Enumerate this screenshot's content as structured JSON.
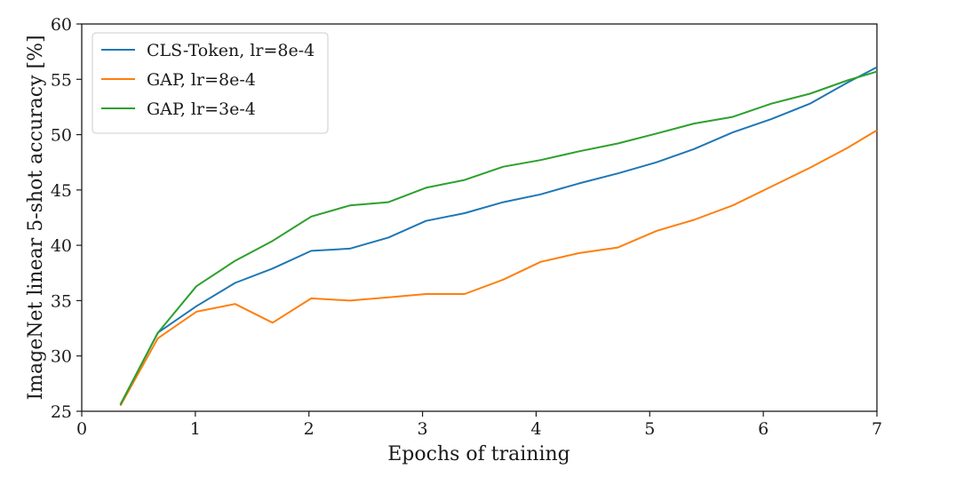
{
  "chart_data": {
    "type": "line",
    "title": "",
    "xlabel": "Epochs of training",
    "ylabel": "ImageNet linear 5-shot accuracy [%]",
    "xlim": [
      0,
      7
    ],
    "ylim": [
      25,
      60
    ],
    "xticks": [
      0,
      1,
      2,
      3,
      4,
      5,
      6,
      7
    ],
    "yticks": [
      25,
      30,
      35,
      40,
      45,
      50,
      55,
      60
    ],
    "grid": false,
    "legend_position": "top-left",
    "series": [
      {
        "name": "CLS-Token, lr=8e-4",
        "color": "#1f77b4",
        "x": [
          0.34,
          0.67,
          1.01,
          1.35,
          1.68,
          2.02,
          2.36,
          2.7,
          3.03,
          3.37,
          3.71,
          4.04,
          4.38,
          4.72,
          5.06,
          5.39,
          5.73,
          6.07,
          6.41,
          6.74,
          7.0
        ],
        "y": [
          25.6,
          32.1,
          34.5,
          36.6,
          37.9,
          39.5,
          39.7,
          40.7,
          42.2,
          42.9,
          43.9,
          44.6,
          45.6,
          46.5,
          47.5,
          48.7,
          50.2,
          51.4,
          52.8,
          54.7,
          56.1
        ]
      },
      {
        "name": "GAP, lr=8e-4",
        "color": "#ff7f0e",
        "x": [
          0.34,
          0.67,
          1.01,
          1.35,
          1.68,
          2.02,
          2.36,
          2.7,
          3.03,
          3.37,
          3.71,
          4.04,
          4.38,
          4.72,
          5.06,
          5.39,
          5.73,
          6.07,
          6.41,
          6.74,
          7.0
        ],
        "y": [
          25.5,
          31.6,
          34.0,
          34.7,
          33.0,
          35.2,
          35.0,
          35.3,
          35.6,
          35.6,
          36.9,
          38.5,
          39.3,
          39.8,
          41.3,
          42.3,
          43.6,
          45.3,
          47.0,
          48.8,
          50.4
        ]
      },
      {
        "name": "GAP, lr=3e-4",
        "color": "#2ca02c",
        "x": [
          0.34,
          0.67,
          1.01,
          1.35,
          1.68,
          2.02,
          2.36,
          2.7,
          3.03,
          3.37,
          3.71,
          4.04,
          4.38,
          4.72,
          5.06,
          5.39,
          5.73,
          6.07,
          6.41,
          6.74,
          7.0
        ],
        "y": [
          25.6,
          32.1,
          36.3,
          38.6,
          40.4,
          42.6,
          43.6,
          43.9,
          45.2,
          45.9,
          47.1,
          47.7,
          48.5,
          49.2,
          50.1,
          51.0,
          51.6,
          52.8,
          53.7,
          54.9,
          55.7
        ]
      }
    ]
  }
}
